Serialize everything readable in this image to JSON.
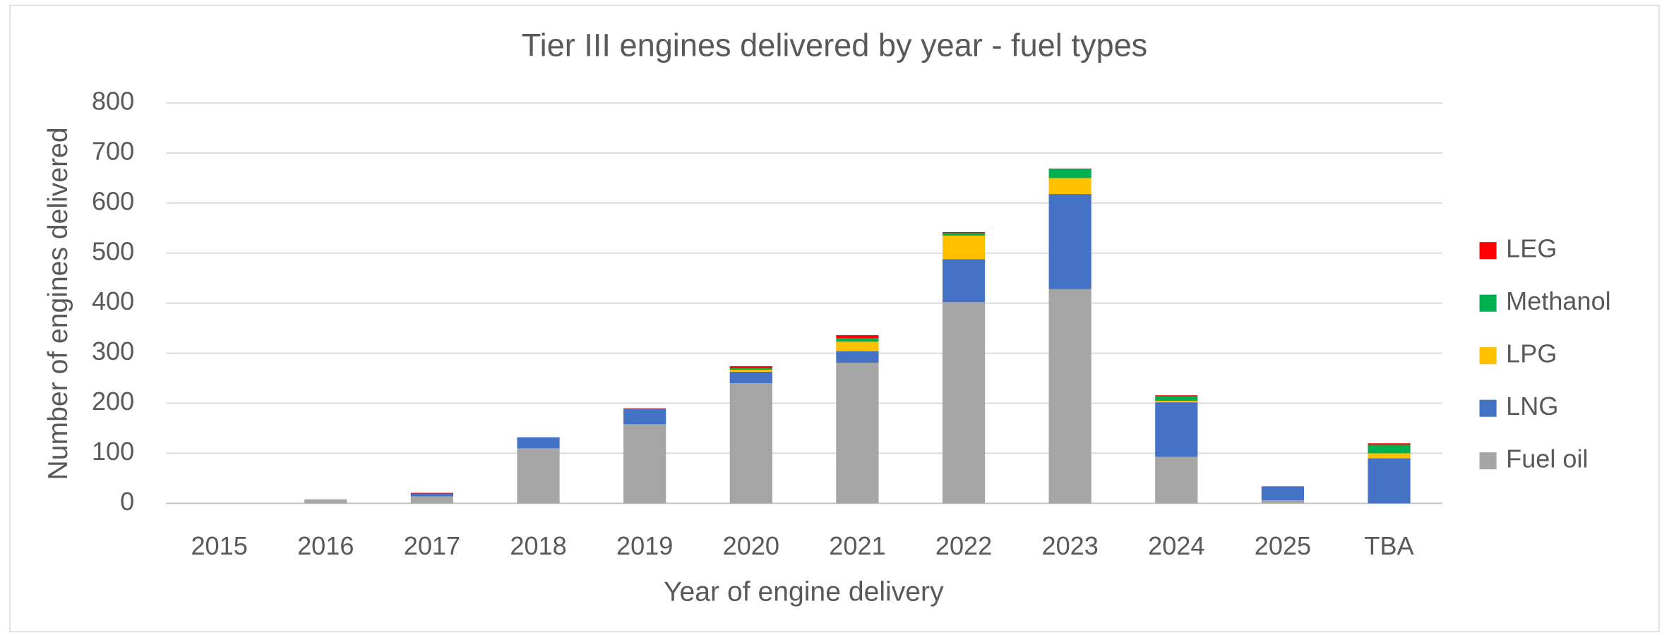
{
  "chart_data": {
    "type": "stacked_bar",
    "title": "Tier III engines delivered by year - fuel types",
    "x_label": "Year of engine delivery",
    "y_label": "Number of engines delivered",
    "categories": [
      "2015",
      "2016",
      "2017",
      "2018",
      "2019",
      "2020",
      "2021",
      "2022",
      "2023",
      "2024",
      "2025",
      "TBA"
    ],
    "series": [
      {
        "name": "Fuel oil",
        "color": "#a5a5a5",
        "values": [
          0,
          8,
          14,
          110,
          158,
          240,
          281,
          402,
          428,
          93,
          6,
          0
        ]
      },
      {
        "name": "LNG",
        "color": "#4472c4",
        "values": [
          0,
          0,
          5,
          22,
          30,
          23,
          23,
          86,
          190,
          109,
          28,
          90
        ]
      },
      {
        "name": "LPG",
        "color": "#ffc000",
        "values": [
          0,
          0,
          0,
          0,
          0,
          4,
          19,
          47,
          32,
          3,
          0,
          10
        ]
      },
      {
        "name": "Methanol",
        "color": "#00b050",
        "values": [
          0,
          0,
          0,
          0,
          1,
          3,
          7,
          5,
          18,
          9,
          0,
          17
        ]
      },
      {
        "name": "LEG",
        "color": "#ff0000",
        "values": [
          0,
          0,
          2,
          0,
          1,
          4,
          6,
          2,
          1,
          2,
          0,
          3
        ]
      }
    ],
    "ylim": [
      0,
      800
    ],
    "yticks": [
      0,
      100,
      200,
      300,
      400,
      500,
      600,
      700,
      800
    ],
    "grid": true,
    "legend": "right"
  }
}
